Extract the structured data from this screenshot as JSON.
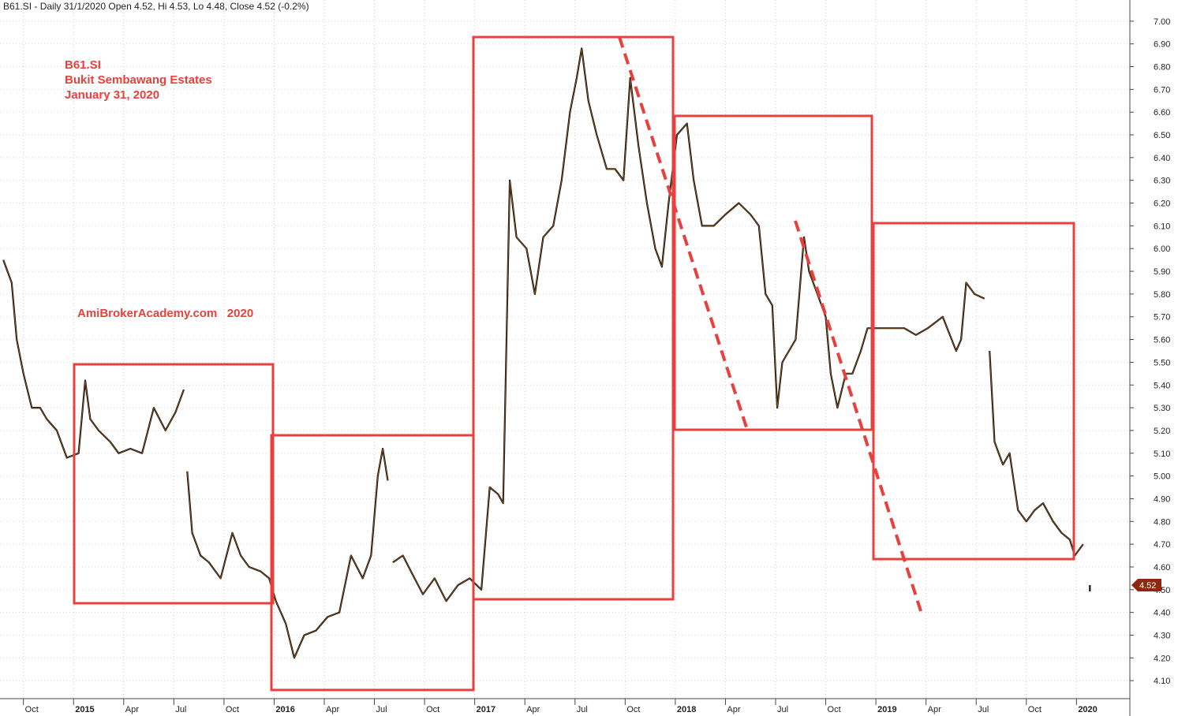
{
  "chart_data": {
    "type": "line",
    "title": "B61.SI - Daily 31/1/2020 Open 4.52, Hi 4.53, Lo 4.48, Close 4.52 (-0.2%)",
    "annotations": [
      "B61.SI",
      "Bukit Sembawang Estates",
      "January 31, 2020",
      "AmiBrokerAcademy.com   2020"
    ],
    "last_value": 4.52,
    "color": "#111111",
    "grid": true,
    "xlim": [
      -4.4,
      63.1
    ],
    "ylim": [
      4.0,
      7.1
    ],
    "xticks": [
      {
        "value": -3,
        "label": "Oct"
      },
      {
        "value": 0,
        "label": "2015"
      },
      {
        "value": 3,
        "label": "Apr"
      },
      {
        "value": 6,
        "label": "Jul"
      },
      {
        "value": 9,
        "label": "Oct"
      },
      {
        "value": 12,
        "label": "2016"
      },
      {
        "value": 15,
        "label": "Apr"
      },
      {
        "value": 18,
        "label": "Jul"
      },
      {
        "value": 21,
        "label": "Oct"
      },
      {
        "value": 24,
        "label": "2017"
      },
      {
        "value": 27,
        "label": "Apr"
      },
      {
        "value": 30,
        "label": "Jul"
      },
      {
        "value": 33,
        "label": "Oct"
      },
      {
        "value": 36,
        "label": "2018"
      },
      {
        "value": 39,
        "label": "Apr"
      },
      {
        "value": 42,
        "label": "Jul"
      },
      {
        "value": 45,
        "label": "Oct"
      },
      {
        "value": 48,
        "label": "2019"
      },
      {
        "value": 51,
        "label": "Apr"
      },
      {
        "value": 54,
        "label": "Jul"
      },
      {
        "value": 57,
        "label": "Oct"
      },
      {
        "value": 60,
        "label": "2020"
      }
    ],
    "yticks": [
      {
        "value": 4.1,
        "label": "4.10"
      },
      {
        "value": 4.2,
        "label": "4.20"
      },
      {
        "value": 4.3,
        "label": "4.30"
      },
      {
        "value": 4.4,
        "label": "4.40"
      },
      {
        "value": 4.5,
        "label": "4.50"
      },
      {
        "value": 4.6,
        "label": "4.60"
      },
      {
        "value": 4.7,
        "label": "4.70"
      },
      {
        "value": 4.8,
        "label": "4.80"
      },
      {
        "value": 4.9,
        "label": "4.90"
      },
      {
        "value": 5.0,
        "label": "5.00"
      },
      {
        "value": 5.1,
        "label": "5.10"
      },
      {
        "value": 5.2,
        "label": "5.20"
      },
      {
        "value": 5.3,
        "label": "5.30"
      },
      {
        "value": 5.4,
        "label": "5.40"
      },
      {
        "value": 5.5,
        "label": "5.50"
      },
      {
        "value": 5.6,
        "label": "5.60"
      },
      {
        "value": 5.7,
        "label": "5.70"
      },
      {
        "value": 5.8,
        "label": "5.80"
      },
      {
        "value": 5.9,
        "label": "5.90"
      },
      {
        "value": 6.0,
        "label": "6.00"
      },
      {
        "value": 6.1,
        "label": "6.10"
      },
      {
        "value": 6.2,
        "label": "6.20"
      },
      {
        "value": 6.3,
        "label": "6.30"
      },
      {
        "value": 6.4,
        "label": "6.40"
      },
      {
        "value": 6.5,
        "label": "6.50"
      },
      {
        "value": 6.6,
        "label": "6.60"
      },
      {
        "value": 6.7,
        "label": "6.70"
      },
      {
        "value": 6.8,
        "label": "6.80"
      },
      {
        "value": 6.9,
        "label": "6.90"
      },
      {
        "value": 7.0,
        "label": "7.00"
      }
    ],
    "x": [
      -4.2,
      -3.7,
      -3.4,
      -3.0,
      -2.5,
      -2.0,
      -1.6,
      -1.0,
      -0.4,
      0.3,
      0.7,
      1.0,
      1.5,
      2.2,
      2.7,
      3.4,
      4.1,
      4.8,
      5.5,
      6.1,
      6.6,
      6.7,
      6.8,
      7.1,
      7.6,
      8.1,
      8.8,
      9.5,
      10.0,
      10.5,
      11.2,
      11.7,
      12.1,
      12.7,
      13.2,
      13.8,
      14.5,
      15.2,
      15.9,
      16.6,
      17.3,
      17.8,
      18.2,
      18.5,
      18.8,
      18.9,
      19.1,
      19.7,
      20.4,
      20.9,
      21.6,
      22.3,
      23.0,
      23.7,
      24.4,
      24.9,
      25.4,
      25.7,
      26.1,
      26.5,
      27.1,
      27.6,
      28.1,
      28.7,
      29.2,
      29.7,
      30.1,
      30.4,
      30.8,
      31.3,
      31.9,
      32.4,
      32.9,
      33.3,
      33.8,
      34.3,
      34.8,
      35.2,
      35.6,
      36.1,
      36.7,
      37.1,
      37.6,
      38.3,
      39.0,
      39.8,
      40.5,
      41.0,
      41.4,
      41.8,
      42.1,
      42.4,
      42.8,
      43.2,
      43.7,
      44.0,
      44.5,
      45.0,
      45.3,
      45.7,
      46.2,
      46.6,
      47.1,
      47.5,
      48.2,
      48.9,
      49.7,
      50.4,
      51.1,
      52.0,
      52.8,
      53.1,
      53.4,
      53.9,
      54.5,
      54.6,
      54.8,
      55.1,
      55.6,
      56.0,
      56.5,
      57.0,
      57.5,
      58.0,
      58.6,
      59.1,
      59.6,
      59.9,
      60.4,
      60.6,
      60.8
    ],
    "values": [
      5.95,
      5.85,
      5.6,
      5.45,
      5.3,
      5.3,
      5.25,
      5.2,
      5.08,
      5.1,
      5.42,
      5.25,
      5.2,
      5.15,
      5.1,
      5.12,
      5.1,
      5.3,
      5.2,
      5.28,
      5.38,
      null,
      5.02,
      4.75,
      4.65,
      4.62,
      4.55,
      4.75,
      4.65,
      4.6,
      4.58,
      4.55,
      4.45,
      4.35,
      4.2,
      4.3,
      4.32,
      4.38,
      4.4,
      4.65,
      4.55,
      4.65,
      5.0,
      5.12,
      4.98,
      null,
      4.62,
      4.65,
      4.55,
      4.48,
      4.55,
      4.45,
      4.52,
      4.55,
      4.5,
      4.95,
      4.92,
      4.88,
      6.3,
      6.05,
      6.0,
      5.8,
      6.05,
      6.1,
      6.3,
      6.6,
      6.75,
      6.88,
      6.65,
      6.5,
      6.35,
      6.35,
      6.3,
      6.75,
      6.45,
      6.2,
      6.0,
      5.92,
      6.2,
      6.5,
      6.55,
      6.3,
      6.1,
      6.1,
      6.15,
      6.2,
      6.15,
      6.1,
      5.8,
      5.75,
      5.3,
      5.5,
      5.55,
      5.6,
      6.05,
      5.9,
      5.8,
      5.7,
      5.45,
      5.3,
      5.45,
      5.45,
      5.55,
      5.65,
      5.65,
      5.65,
      5.65,
      5.62,
      5.65,
      5.7,
      5.55,
      5.6,
      5.85,
      5.8,
      5.78,
      null,
      5.55,
      5.15,
      5.05,
      5.1,
      4.85,
      4.8,
      4.85,
      4.88,
      4.8,
      4.75,
      4.72,
      4.65,
      4.7,
      null,
      4.52
    ]
  }
}
